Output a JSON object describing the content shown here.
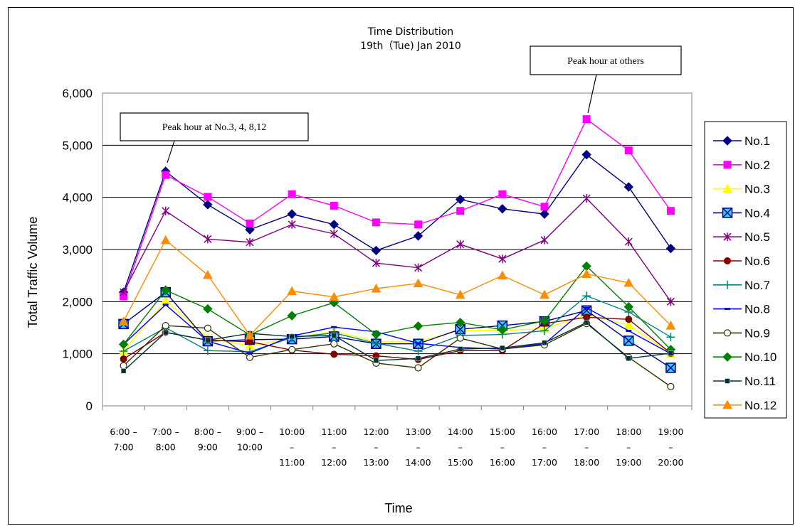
{
  "chart_data": {
    "type": "line",
    "title_lines": [
      "Time Distribution",
      "19th（Tue) Jan 2010"
    ],
    "xlabel": "Time",
    "ylabel": "Total Traffic Volume",
    "ylim": [
      0,
      6000
    ],
    "yticks": [
      0,
      1000,
      2000,
      3000,
      4000,
      5000,
      6000
    ],
    "ytick_labels": [
      "0",
      "1,000",
      "2,000",
      "3,000",
      "4,000",
      "5,000",
      "6,000"
    ],
    "grid": "horizontal",
    "legend_position": "right",
    "categories": [
      [
        "6:00 –",
        "7:00"
      ],
      [
        "7:00 –",
        "8:00"
      ],
      [
        "8:00 –",
        "9:00"
      ],
      [
        "9:00 –",
        "10:00"
      ],
      [
        "10:00",
        "–",
        "11:00"
      ],
      [
        "11:00",
        "–",
        "12:00"
      ],
      [
        "12:00",
        "–",
        "13:00"
      ],
      [
        "13:00",
        "–",
        "14:00"
      ],
      [
        "14:00",
        "–",
        "15:00"
      ],
      [
        "15:00",
        "–",
        "16:00"
      ],
      [
        "16:00",
        "–",
        "17:00"
      ],
      [
        "17:00",
        "–",
        "18:00"
      ],
      [
        "18:00",
        "–",
        "19:00"
      ],
      [
        "19:00",
        "–",
        "20:00"
      ]
    ],
    "series": [
      {
        "name": "No.1",
        "color": "#000080",
        "marker": "diamond",
        "values": [
          2180,
          4500,
          3860,
          3380,
          3680,
          3480,
          2980,
          3260,
          3960,
          3780,
          3680,
          4820,
          4200,
          3020
        ]
      },
      {
        "name": "No.2",
        "color": "#ff00ff",
        "marker": "square",
        "values": [
          2100,
          4430,
          4010,
          3500,
          4060,
          3840,
          3520,
          3480,
          3740,
          4060,
          3820,
          5500,
          4900,
          3740
        ]
      },
      {
        "name": "No.3",
        "color": "#ffff00",
        "marker": "triangle",
        "values": [
          1050,
          2020,
          1300,
          1150,
          1300,
          1430,
          1230,
          1230,
          1450,
          1450,
          1480,
          1750,
          1550,
          1000
        ]
      },
      {
        "name": "No.4",
        "color": "#000080",
        "marker": "xsquare",
        "values": [
          1570,
          2180,
          1240,
          1270,
          1280,
          1330,
          1190,
          1190,
          1470,
          1540,
          1620,
          1830,
          1250,
          730
        ]
      },
      {
        "name": "No.5",
        "color": "#800080",
        "marker": "star",
        "values": [
          2180,
          3740,
          3200,
          3140,
          3480,
          3300,
          2740,
          2650,
          3100,
          2820,
          3180,
          3980,
          3150,
          2000
        ]
      },
      {
        "name": "No.6",
        "color": "#800000",
        "marker": "circle",
        "values": [
          900,
          1410,
          1260,
          1230,
          1070,
          990,
          960,
          890,
          1060,
          1060,
          1580,
          1700,
          1660,
          1010
        ]
      },
      {
        "name": "No.7",
        "color": "#008080",
        "marker": "plus",
        "values": [
          1050,
          1500,
          1060,
          1040,
          1310,
          1400,
          1200,
          1050,
          1350,
          1370,
          1440,
          2110,
          1800,
          1320
        ]
      },
      {
        "name": "No.8",
        "color": "#0000ff",
        "marker": "dash",
        "values": [
          1180,
          1940,
          1240,
          1010,
          1340,
          1510,
          1420,
          1200,
          1120,
          1090,
          1190,
          1880,
          1440,
          1000
        ]
      },
      {
        "name": "No.9",
        "color": "#333300",
        "marker": "ocircle",
        "values": [
          770,
          1540,
          1490,
          930,
          1080,
          1190,
          820,
          730,
          1300,
          1090,
          1170,
          1580,
          930,
          370
        ]
      },
      {
        "name": "No.10",
        "color": "#008000",
        "marker": "diamond",
        "values": [
          1180,
          2220,
          1860,
          1360,
          1730,
          1980,
          1370,
          1530,
          1600,
          1460,
          1630,
          2680,
          1900,
          1080
        ]
      },
      {
        "name": "No.11",
        "color": "#003333",
        "marker": "smallsquare",
        "values": [
          670,
          1410,
          1260,
          1390,
          1330,
          1350,
          870,
          910,
          1090,
          1110,
          1210,
          1600,
          910,
          1010
        ]
      },
      {
        "name": "No.12",
        "color": "#ff8c00",
        "marker": "triangle",
        "values": [
          1620,
          3180,
          2510,
          1350,
          2200,
          2090,
          2250,
          2350,
          2130,
          2500,
          2130,
          2530,
          2360,
          1540
        ]
      }
    ],
    "annotations": [
      {
        "text": "Peak hour at No.3, 4, 8,12"
      },
      {
        "text": "Peak hour at others"
      }
    ]
  }
}
